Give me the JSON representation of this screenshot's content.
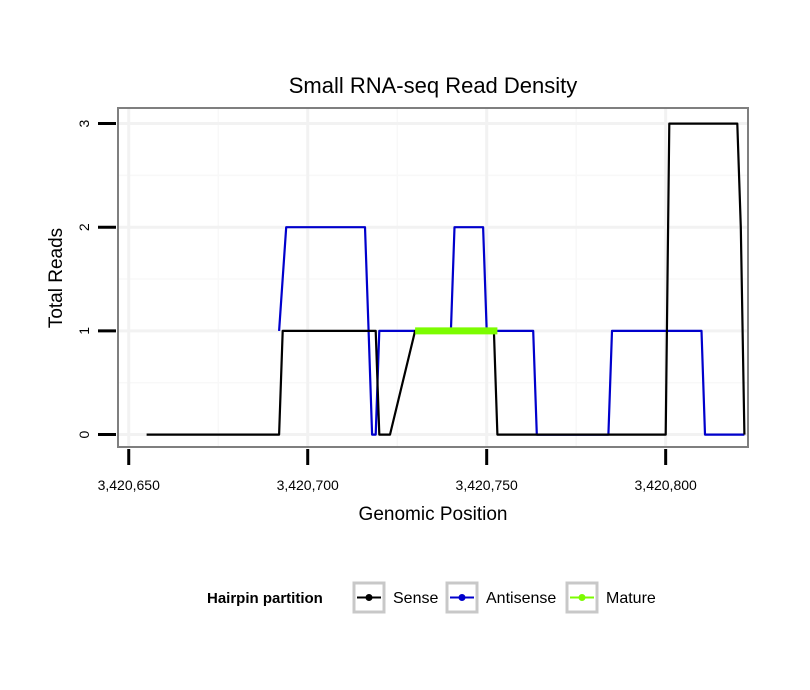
{
  "chart_data": {
    "type": "line",
    "title": "Small RNA-seq Read Density",
    "xlabel": "Genomic Position",
    "ylabel": "Total Reads",
    "xlim": [
      3420647,
      3420823
    ],
    "ylim": [
      -0.12,
      3.15
    ],
    "x_ticks": [
      3420650,
      3420700,
      3420750,
      3420800
    ],
    "x_tick_labels": [
      "3,420,650",
      "3,420,700",
      "3,420,750",
      "3,420,800"
    ],
    "y_ticks": [
      0,
      1,
      2,
      3
    ],
    "y_tick_labels": [
      "0",
      "1",
      "2",
      "3"
    ],
    "grid": true,
    "legend": {
      "title": "Hairpin partition",
      "position": "bottom",
      "entries": [
        {
          "label": "Sense",
          "color": "#000000"
        },
        {
          "label": "Antisense",
          "color": "#0000cc"
        },
        {
          "label": "Mature",
          "color": "#7cfc00"
        }
      ]
    },
    "series": [
      {
        "name": "Sense",
        "color": "#000000",
        "x": [
          3420655,
          3420692,
          3420693,
          3420714,
          3420715,
          3420716,
          3420719,
          3420720,
          3420723,
          3420730,
          3420739,
          3420741,
          3420746,
          3420747,
          3420752,
          3420753,
          3420800,
          3420801,
          3420820,
          3420821,
          3420822
        ],
        "y": [
          0,
          0,
          1,
          1,
          1,
          1,
          1,
          0,
          0,
          1,
          1,
          1,
          1,
          1,
          1,
          0,
          0,
          3,
          3,
          2,
          0
        ]
      },
      {
        "name": "Antisense",
        "color": "#0000cc",
        "x": [
          3420692,
          3420694,
          3420716,
          3420717,
          3420718,
          3420719,
          3420720,
          3420740,
          3420741,
          3420749,
          3420750,
          3420763,
          3420764,
          3420784,
          3420785,
          3420810,
          3420811,
          3420822
        ],
        "y": [
          1,
          2,
          2,
          1,
          0,
          0,
          1,
          1,
          2,
          2,
          1,
          1,
          0,
          0,
          1,
          1,
          0,
          0
        ]
      },
      {
        "name": "Mature",
        "color": "#7cfc00",
        "x": [
          3420730,
          3420753
        ],
        "y": [
          1,
          1
        ]
      }
    ]
  }
}
